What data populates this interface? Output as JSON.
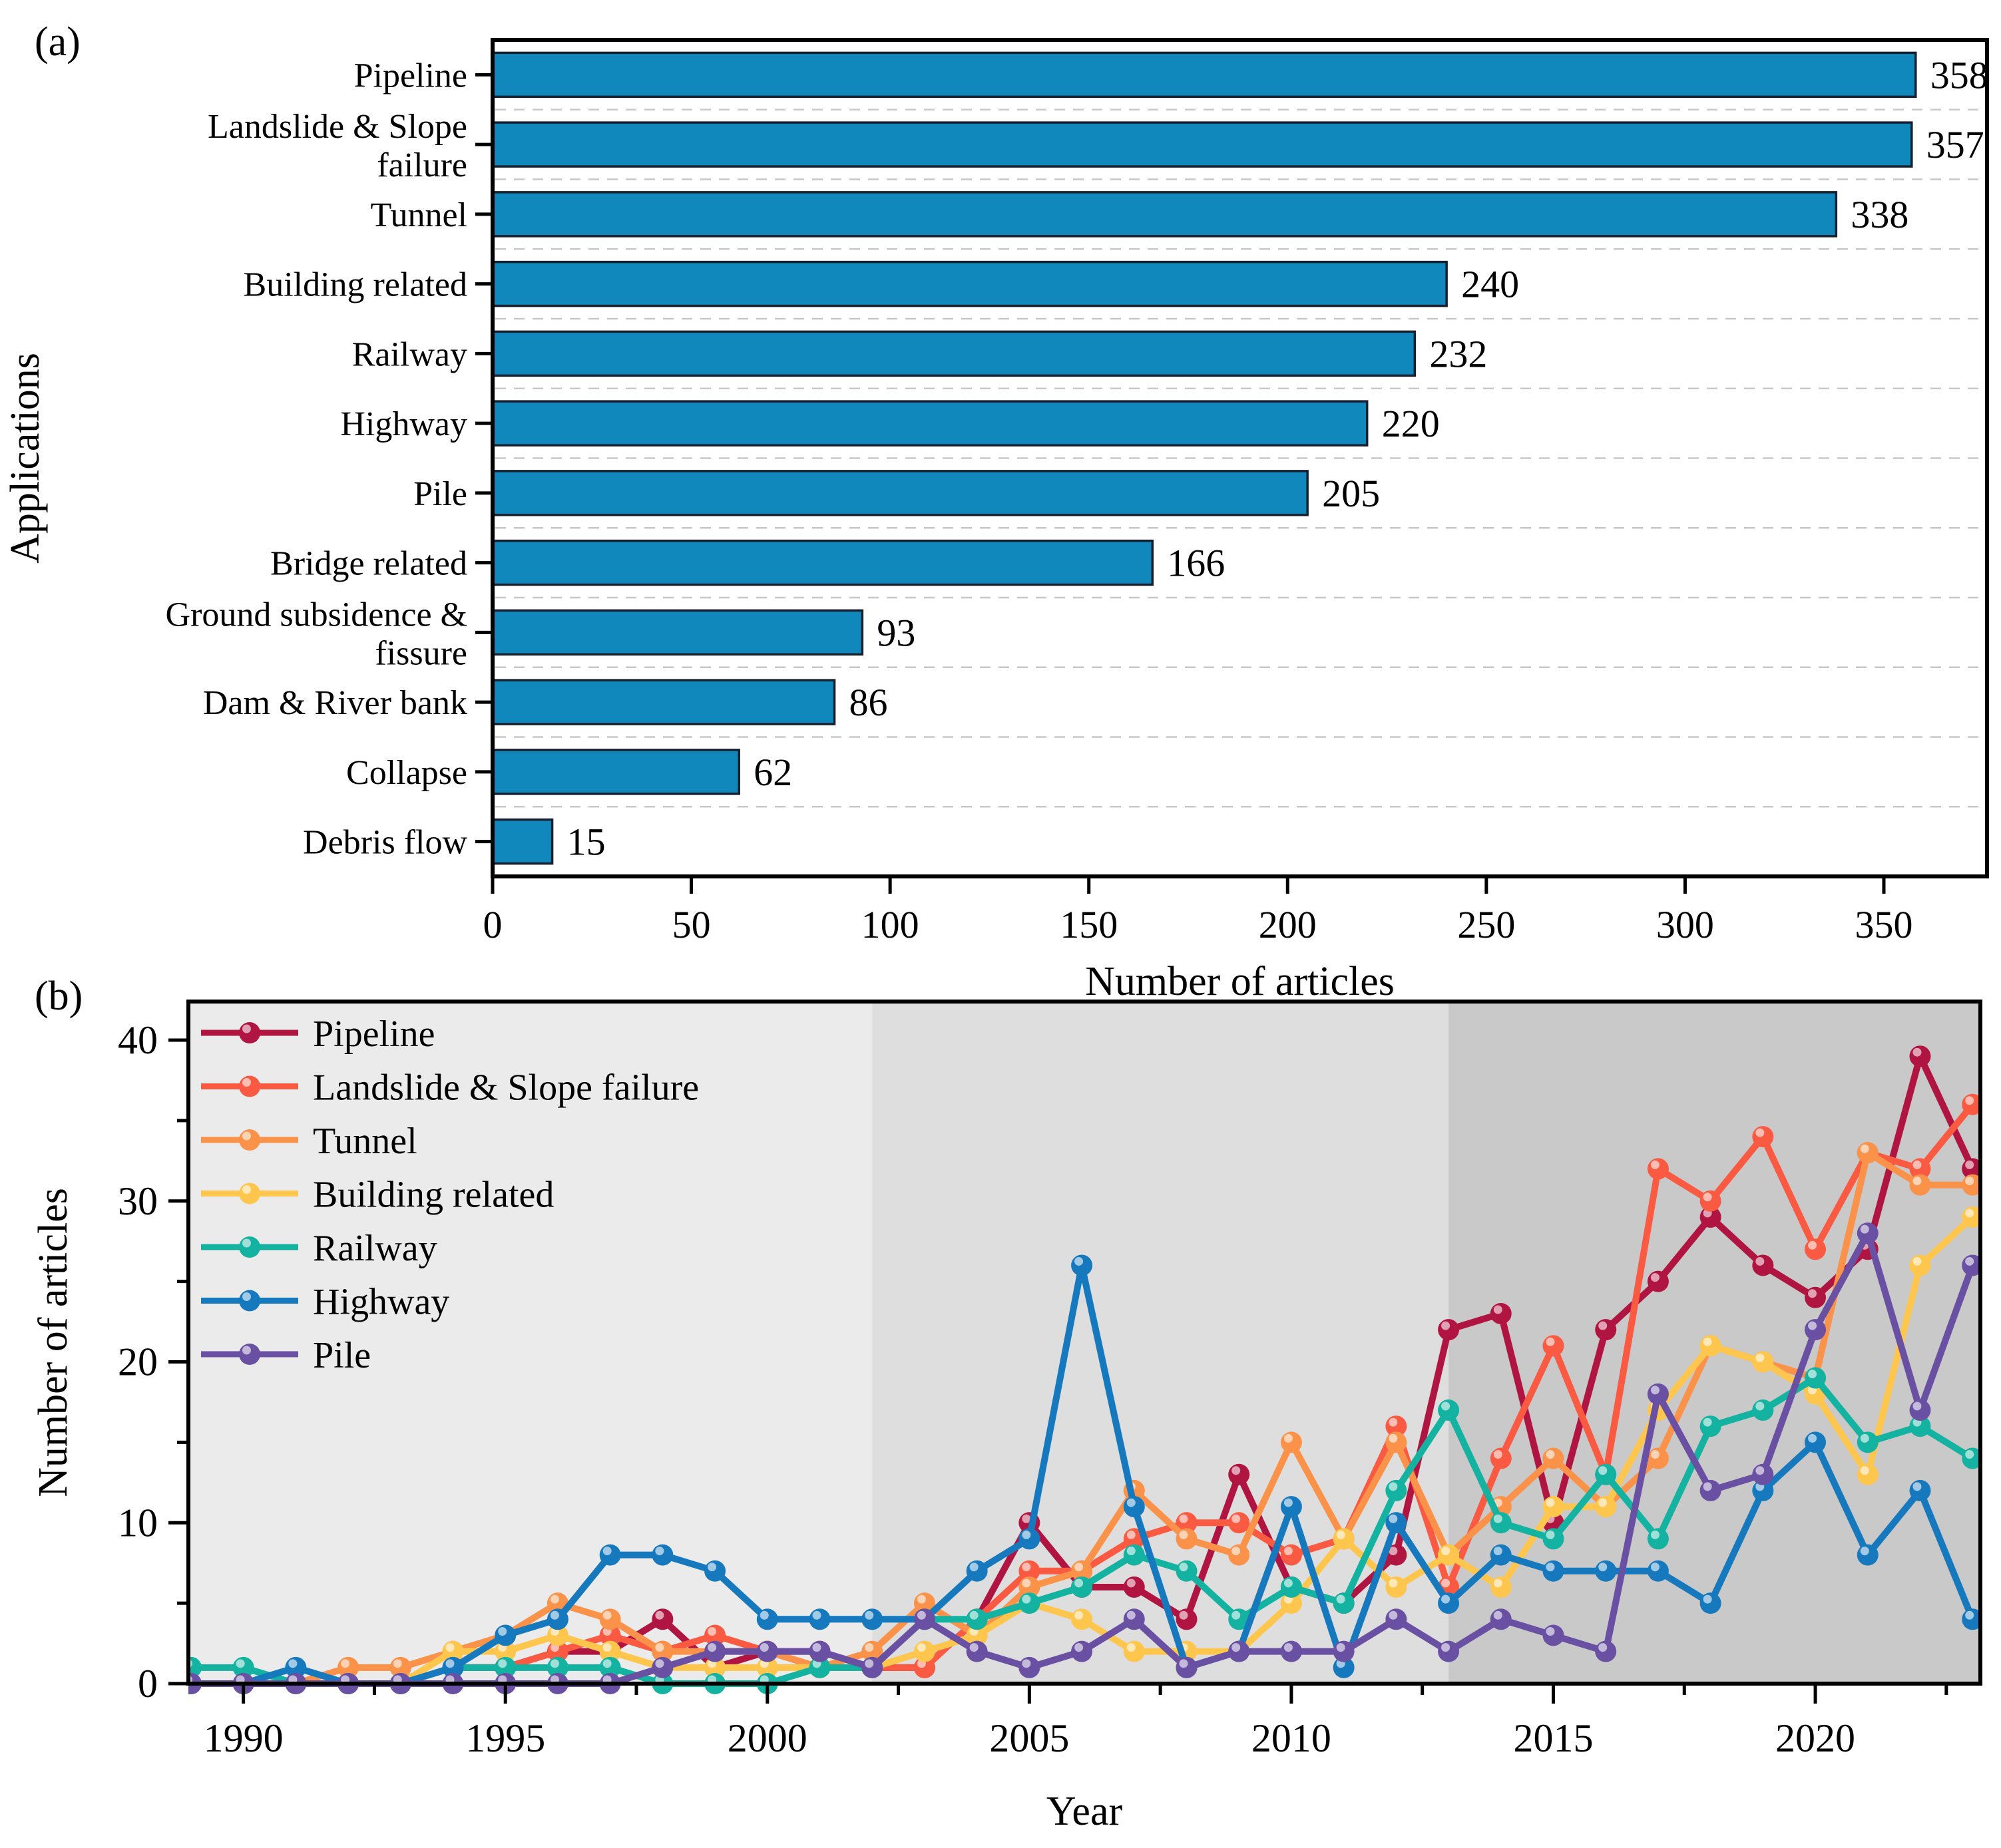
{
  "figure": {
    "panel_a_label": "(a)",
    "panel_b_label": "(b)"
  },
  "chart_data": [
    {
      "type": "bar",
      "orientation": "horizontal",
      "xlabel": "Number of articles",
      "ylabel": "Applications",
      "categories": [
        "Pipeline",
        "Landslide & Slope\nfailure",
        "Tunnel",
        "Building related",
        "Railway",
        "Highway",
        "Pile",
        "Bridge related",
        "Ground subsidence &\nfissure",
        "Dam & River bank",
        "Collapse",
        "Debris flow"
      ],
      "values": [
        358,
        357,
        338,
        240,
        232,
        220,
        205,
        166,
        93,
        86,
        62,
        15
      ],
      "xticks": [
        0,
        50,
        100,
        150,
        200,
        250,
        300,
        350
      ],
      "xlim": [
        0,
        376
      ],
      "bar_color": "#1088BC",
      "bar_edge_color": "#16202E",
      "grid": "dashed-between-categories",
      "grid_color": "#C8C8C8"
    },
    {
      "type": "line",
      "xlabel": "Year",
      "ylabel": "Number of articles",
      "years": [
        1989,
        1990,
        1991,
        1992,
        1993,
        1994,
        1995,
        1996,
        1997,
        1998,
        1999,
        2000,
        2001,
        2002,
        2003,
        2004,
        2005,
        2006,
        2007,
        2008,
        2009,
        2010,
        2011,
        2012,
        2013,
        2014,
        2015,
        2016,
        2017,
        2018,
        2019,
        2020,
        2021,
        2022,
        2023
      ],
      "xticks": [
        1990,
        1995,
        2000,
        2005,
        2010,
        2015,
        2020
      ],
      "xticks_minor": [
        1992.5,
        1997.5,
        2002.5,
        2007.5,
        2012.5,
        2017.5,
        2022.5
      ],
      "yticks": [
        0,
        10,
        20,
        30,
        40
      ],
      "yticks_minor": [
        5,
        15,
        25,
        35
      ],
      "ylim": [
        0,
        42.4
      ],
      "xlim": [
        1988.95,
        2023.15
      ],
      "legend_position": "top-left",
      "background_bands": [
        {
          "from": 1988.95,
          "to": 2002,
          "color": "#EBEBEB"
        },
        {
          "from": 2002,
          "to": 2013,
          "color": "#DEDEDE"
        },
        {
          "from": 2013,
          "to": 2023.15,
          "color": "#C9C9C9"
        }
      ],
      "series": [
        {
          "name": "Pipeline",
          "color": "#B01441",
          "values": [
            0,
            0,
            0,
            0,
            0,
            1,
            1,
            2,
            2,
            4,
            1,
            2,
            2,
            1,
            1,
            4,
            10,
            6,
            6,
            4,
            13,
            6,
            5,
            8,
            22,
            23,
            10,
            22,
            25,
            29,
            26,
            24,
            27,
            39,
            32
          ]
        },
        {
          "name": "Landslide & Slope failure",
          "color": "#FA5A41",
          "values": [
            0,
            0,
            0,
            0,
            0,
            1,
            1,
            2,
            3,
            2,
            3,
            2,
            1,
            1,
            1,
            4,
            7,
            7,
            9,
            10,
            10,
            8,
            9,
            16,
            6,
            14,
            21,
            13,
            32,
            30,
            34,
            27,
            33,
            32,
            36
          ]
        },
        {
          "name": "Tunnel",
          "color": "#FB9249",
          "values": [
            0,
            0,
            0,
            1,
            1,
            2,
            3,
            5,
            4,
            2,
            2,
            2,
            1,
            2,
            5,
            3,
            6,
            7,
            12,
            9,
            8,
            15,
            9,
            15,
            8,
            11,
            14,
            11,
            14,
            21,
            20,
            19,
            33,
            31,
            31
          ]
        },
        {
          "name": "Building related",
          "color": "#FFC64E",
          "values": [
            0,
            0,
            0,
            0,
            0,
            2,
            2,
            3,
            2,
            1,
            1,
            1,
            1,
            1,
            2,
            3,
            5,
            4,
            2,
            2,
            2,
            5,
            9,
            6,
            8,
            6,
            11,
            11,
            17,
            21,
            20,
            18,
            13,
            26,
            29
          ]
        },
        {
          "name": "Railway",
          "color": "#14B2A0",
          "values": [
            1,
            1,
            0,
            0,
            0,
            1,
            1,
            1,
            1,
            0,
            0,
            0,
            1,
            1,
            4,
            4,
            5,
            6,
            8,
            7,
            4,
            6,
            5,
            12,
            17,
            10,
            9,
            13,
            9,
            16,
            17,
            19,
            15,
            16,
            14
          ]
        },
        {
          "name": "Highway",
          "color": "#1779BD",
          "values": [
            0,
            0,
            1,
            0,
            0,
            1,
            3,
            4,
            8,
            8,
            7,
            4,
            4,
            4,
            4,
            7,
            9,
            26,
            11,
            1,
            2,
            11,
            1,
            10,
            5,
            8,
            7,
            7,
            7,
            5,
            12,
            15,
            8,
            12,
            4
          ]
        },
        {
          "name": "Pile",
          "color": "#6A50A2",
          "values": [
            0,
            0,
            0,
            0,
            0,
            0,
            0,
            0,
            0,
            1,
            2,
            2,
            2,
            1,
            4,
            2,
            1,
            2,
            4,
            1,
            2,
            2,
            2,
            4,
            2,
            4,
            3,
            2,
            18,
            12,
            13,
            22,
            28,
            17,
            26
          ]
        }
      ]
    }
  ]
}
